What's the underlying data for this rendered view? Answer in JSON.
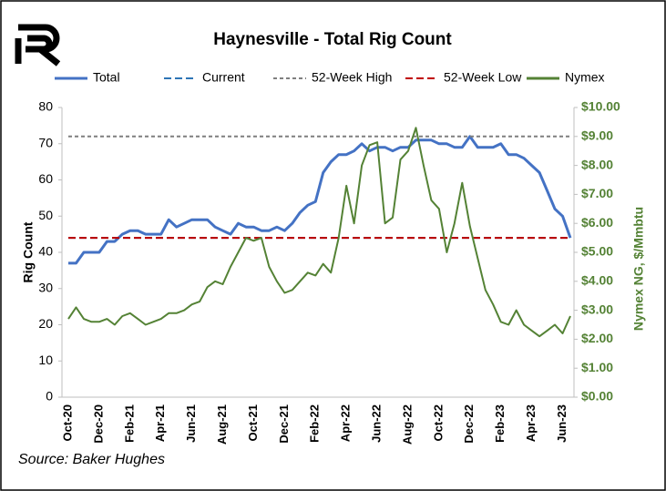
{
  "chart_data": {
    "type": "line",
    "title": "Haynesville - Total Rig Count",
    "source": "Source: Baker Hughes",
    "y_label": "Rig Count",
    "y2_label": "Nymex NG, $/Mmbtu",
    "categories": [
      "Oct-20",
      null,
      null,
      null,
      "Dec-20",
      null,
      null,
      null,
      "Feb-21",
      null,
      null,
      null,
      "Apr-21",
      null,
      null,
      null,
      "Jun-21",
      null,
      null,
      null,
      "Aug-21",
      null,
      null,
      null,
      "Oct-21",
      null,
      null,
      null,
      "Dec-21",
      null,
      null,
      null,
      "Feb-22",
      null,
      null,
      null,
      "Apr-22",
      null,
      null,
      null,
      "Jun-22",
      null,
      null,
      null,
      "Aug-22",
      null,
      null,
      null,
      "Oct-22",
      null,
      null,
      null,
      "Dec-22",
      null,
      null,
      null,
      "Feb-23",
      null,
      null,
      null,
      "Apr-23",
      null,
      null,
      null,
      "Jun-23",
      null
    ],
    "series": [
      {
        "name": "Total",
        "color": "#4472c4",
        "axis": "y",
        "values": [
          37,
          37,
          40,
          40,
          40,
          43,
          43,
          45,
          46,
          46,
          45,
          45,
          45,
          49,
          47,
          48,
          49,
          49,
          49,
          47,
          46,
          45,
          48,
          47,
          47,
          46,
          46,
          47,
          46,
          48,
          51,
          53,
          54,
          62,
          65,
          67,
          67,
          68,
          70,
          68,
          69,
          69,
          68,
          69,
          69,
          71,
          71,
          71,
          70,
          70,
          69,
          69,
          72,
          69,
          69,
          69,
          70,
          67,
          67,
          66,
          64,
          62,
          57,
          52,
          50,
          44
        ]
      },
      {
        "name": "Current",
        "color": "#2e75b6",
        "style": "hline",
        "value": 44
      },
      {
        "name": "52-Week High",
        "color": "#7f7f7f",
        "style": "hline",
        "value": 72
      },
      {
        "name": "52-Week Low",
        "color": "#c00000",
        "style": "hline",
        "value": 44
      },
      {
        "name": "Nymex",
        "color": "#548235",
        "axis": "y2",
        "values": [
          2.7,
          3.1,
          2.7,
          2.6,
          2.6,
          2.7,
          2.5,
          2.8,
          2.9,
          2.7,
          2.5,
          2.6,
          2.7,
          2.9,
          2.9,
          3.0,
          3.2,
          3.3,
          3.8,
          4.0,
          3.9,
          4.5,
          5.0,
          5.5,
          5.4,
          5.5,
          4.5,
          4.0,
          3.6,
          3.7,
          4.0,
          4.3,
          4.2,
          4.6,
          4.3,
          5.5,
          7.3,
          6.0,
          8.0,
          8.7,
          8.8,
          6.0,
          6.2,
          8.2,
          8.5,
          9.3,
          8.0,
          6.8,
          6.5,
          5.0,
          6.0,
          7.4,
          5.9,
          4.8,
          3.7,
          3.2,
          2.6,
          2.5,
          3.0,
          2.5,
          2.3,
          2.1,
          2.3,
          2.5,
          2.2,
          2.8
        ]
      }
    ],
    "ylim": [
      0,
      80
    ],
    "yticks": [
      0,
      10,
      20,
      30,
      40,
      50,
      60,
      70,
      80
    ],
    "y2lim": [
      0,
      10
    ],
    "y2ticks": [
      {
        "value": 0,
        "label": "$0.00"
      },
      {
        "value": 1,
        "label": "$1.00"
      },
      {
        "value": 2,
        "label": "$2.00"
      },
      {
        "value": 3,
        "label": "$3.00"
      },
      {
        "value": 4,
        "label": "$4.00"
      },
      {
        "value": 5,
        "label": "$5.00"
      },
      {
        "value": 6,
        "label": "$6.00"
      },
      {
        "value": 7,
        "label": "$7.00"
      },
      {
        "value": 8,
        "label": "$8.00"
      },
      {
        "value": 9,
        "label": "$9.00"
      },
      {
        "value": 10,
        "label": "$10.00"
      }
    ],
    "grid": false
  }
}
